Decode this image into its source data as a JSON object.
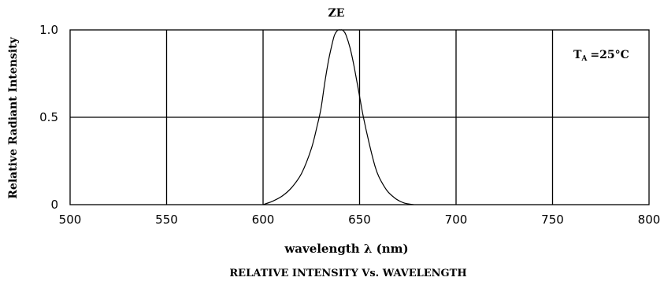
{
  "chart_data": {
    "type": "line",
    "title": "ZE",
    "xlabel": "wavelength  λ (nm)",
    "ylabel": "Relative  Radiant  Intensity",
    "caption": "RELATIVE  INTENSITY  Vs.  WAVELENGTH",
    "condition": {
      "symbol": "T",
      "subscript": "A",
      "value": "=25°C"
    },
    "xlim": [
      500,
      800
    ],
    "ylim": [
      0,
      1.0
    ],
    "x_ticks": [
      500,
      550,
      600,
      650,
      700,
      750,
      800
    ],
    "x_tick_labels": [
      "500",
      "550",
      "600",
      "650",
      "700",
      "750",
      "800"
    ],
    "y_ticks": [
      0,
      0.5,
      1.0
    ],
    "y_tick_labels": [
      "0",
      "0.5",
      "1.0"
    ],
    "grid": true,
    "series": [
      {
        "x": [
          600,
          605,
          610,
          615,
          620,
          625,
          628,
          630,
          632,
          634,
          636,
          637,
          638,
          639,
          640,
          641,
          642,
          643,
          645,
          647,
          650,
          652,
          655,
          658,
          660,
          663,
          665,
          668,
          670,
          673,
          676,
          678
        ],
        "y": [
          0,
          0.02,
          0.05,
          0.1,
          0.18,
          0.32,
          0.45,
          0.55,
          0.7,
          0.83,
          0.93,
          0.97,
          0.99,
          1.0,
          1.0,
          1.0,
          0.99,
          0.97,
          0.9,
          0.8,
          0.62,
          0.5,
          0.35,
          0.22,
          0.16,
          0.1,
          0.07,
          0.04,
          0.025,
          0.01,
          0.003,
          0
        ]
      }
    ]
  }
}
